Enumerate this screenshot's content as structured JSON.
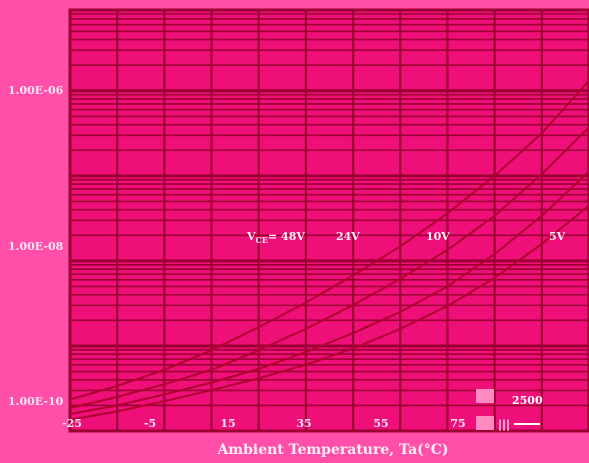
{
  "chart_data": {
    "type": "line",
    "title": "",
    "xlabel": "Ambient Temperature, Ta(°C)",
    "ylabel": "",
    "x_ticks": [
      "-25",
      "-5",
      "15",
      "35",
      "55",
      "75"
    ],
    "y_ticks": [
      "1.00E-06",
      "1.00E-08",
      "1.00E-10"
    ],
    "xlim": [
      -25,
      85
    ],
    "ylim_log10": [
      -10,
      -5.05
    ],
    "y_scale": "log",
    "grid": true,
    "series": [
      {
        "name": "VCE=48V",
        "label_main": "V",
        "label_sub": "CE",
        "label_rest": "= 48V",
        "x": [
          -25,
          -15,
          -5,
          5,
          15,
          25,
          35,
          45,
          55,
          65,
          75,
          85
        ],
        "y_log10": [
          -9.63,
          -9.47,
          -9.28,
          -9.05,
          -8.78,
          -8.49,
          -8.17,
          -7.83,
          -7.44,
          -7.0,
          -6.5,
          -5.88
        ]
      },
      {
        "name": "24V",
        "label_main": "24V",
        "x": [
          -25,
          -15,
          -5,
          5,
          15,
          25,
          35,
          45,
          55,
          65,
          75,
          85
        ],
        "y_log10": [
          -9.73,
          -9.6,
          -9.45,
          -9.28,
          -9.05,
          -8.8,
          -8.52,
          -8.21,
          -7.87,
          -7.47,
          -6.98,
          -6.43
        ]
      },
      {
        "name": "10V",
        "label_main": "10V",
        "x": [
          -25,
          -15,
          -5,
          5,
          15,
          25,
          35,
          45,
          55,
          65,
          75,
          85
        ],
        "y_log10": [
          -9.8,
          -9.7,
          -9.57,
          -9.43,
          -9.27,
          -9.07,
          -8.85,
          -8.6,
          -8.3,
          -7.92,
          -7.47,
          -6.95
        ]
      },
      {
        "name": "5V",
        "label_main": "5V",
        "x": [
          -25,
          -15,
          -5,
          5,
          15,
          25,
          35,
          45,
          55,
          65,
          75,
          85
        ],
        "y_log10": [
          -9.87,
          -9.77,
          -9.65,
          -9.52,
          -9.38,
          -9.22,
          -9.03,
          -8.8,
          -8.53,
          -8.2,
          -7.8,
          -7.35
        ]
      }
    ],
    "legend": {
      "items": [
        "2500",
        "|||"
      ]
    },
    "colors": {
      "background": "#ff4fa8",
      "plot_bg": "#ee0f78",
      "grid": "#9c0033",
      "line": "#b00030",
      "text": "#fff0f7"
    }
  }
}
